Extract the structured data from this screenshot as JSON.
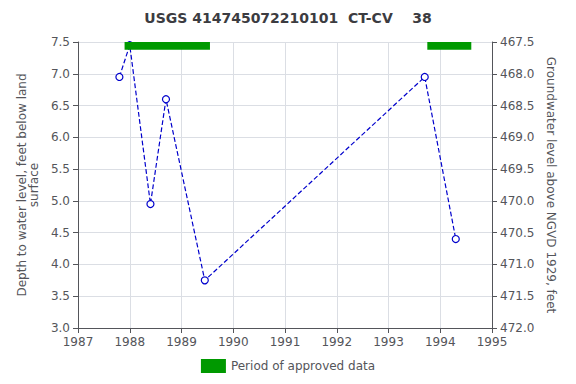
{
  "chart_data": {
    "type": "line",
    "title": "USGS 414745072210101  CT-CV    38",
    "ylabel": "Depth to water level, feet below land\nsurface",
    "y2label": "Groundwater level above NGVD 1929, feet",
    "x": [
      1987.8,
      1988.0,
      1988.4,
      1988.7,
      1989.45,
      1993.7,
      1994.3
    ],
    "series": [
      {
        "type": "line",
        "color": "#0000cc",
        "marker": "circle",
        "line_style": "dashed",
        "values": [
          6.95,
          7.45,
          4.95,
          6.6,
          3.75,
          6.95,
          4.4
        ]
      },
      {
        "type": "span",
        "name": "Period of approved data",
        "color": "#009900",
        "spans": [
          [
            1987.9,
            1989.55
          ],
          [
            1993.75,
            1994.6
          ]
        ],
        "y_from": 7.38,
        "y_to": 7.5
      }
    ],
    "xlim": [
      1987,
      1995
    ],
    "xticks": [
      1987,
      1988,
      1989,
      1990,
      1991,
      1992,
      1993,
      1994,
      1995
    ],
    "ylim": [
      3.0,
      7.5
    ],
    "yticks": [
      {
        "value": 3.0,
        "label": "3.0"
      },
      3.5,
      {
        "value": 4.0,
        "label": "4.0"
      },
      4.5,
      {
        "value": 5.0,
        "label": "5.0"
      },
      5.5,
      {
        "value": 6.0,
        "label": "6.0"
      },
      6.5,
      {
        "value": 7.0,
        "label": "7.0"
      },
      7.5
    ],
    "y2lim": [
      472.0,
      467.5
    ],
    "y2ticks": [
      {
        "value": 472.0,
        "label": "472.0"
      },
      471.5,
      {
        "value": 471.0,
        "label": "471.0"
      },
      470.5,
      {
        "value": 470.0,
        "label": "470.0"
      },
      469.5,
      {
        "value": 469.0,
        "label": "469.0"
      },
      468.5,
      {
        "value": 468.0,
        "label": "468.0"
      },
      467.5
    ],
    "grid": true,
    "legend": "bottom"
  }
}
